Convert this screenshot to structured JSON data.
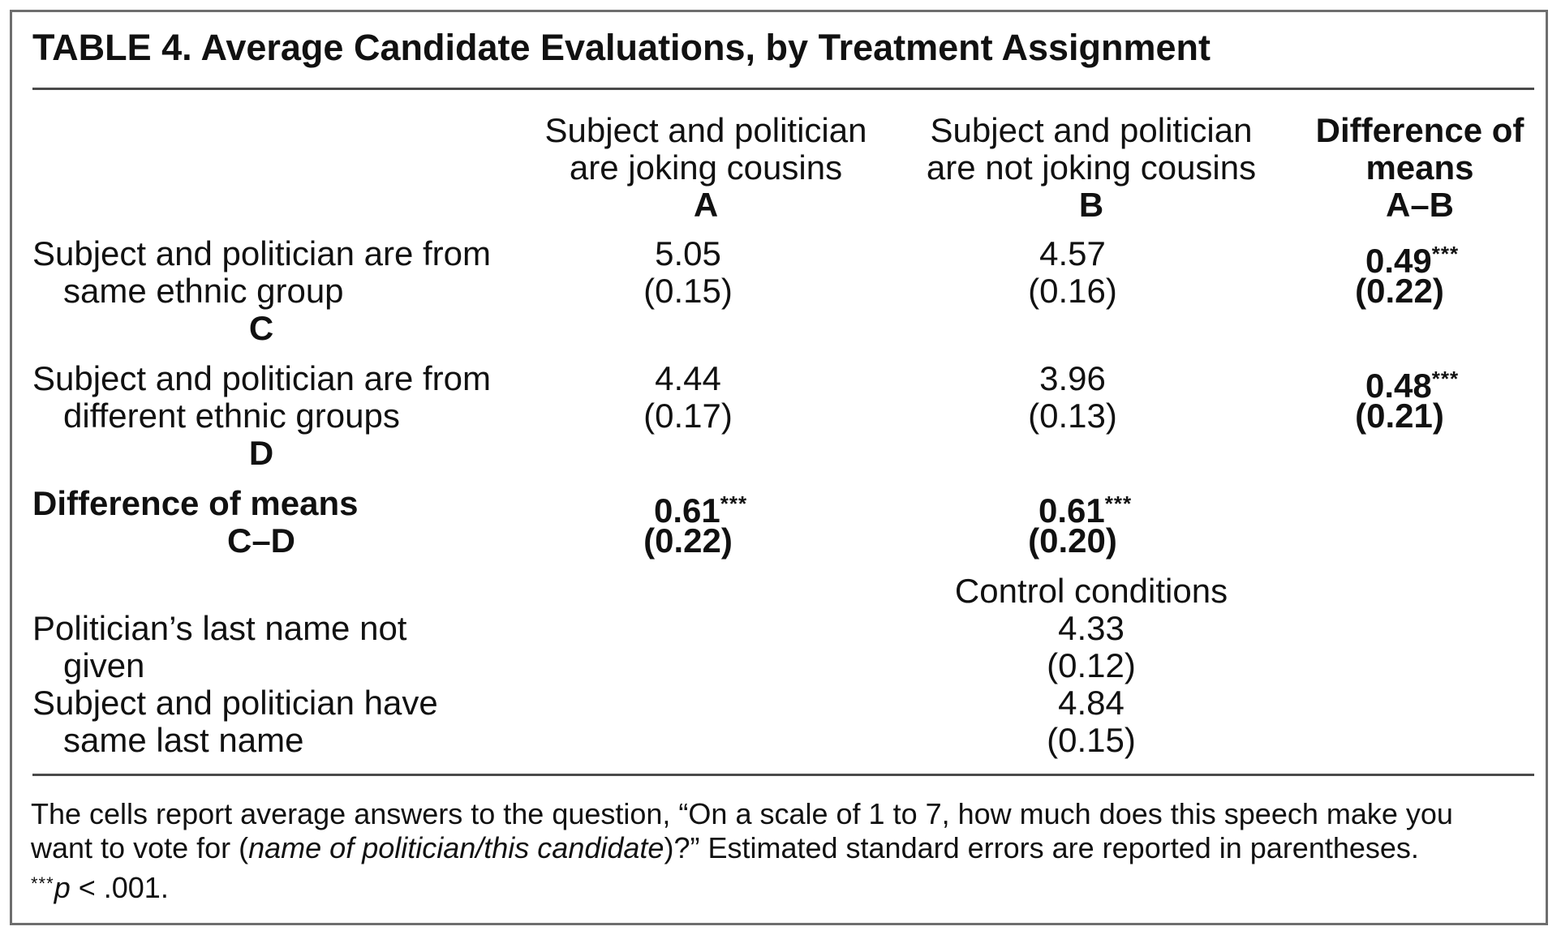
{
  "table": {
    "title": "TABLE 4.   Average Candidate Evaluations, by Treatment Assignment",
    "columns": [
      {
        "line1": "Subject and politician",
        "line2": "are joking cousins",
        "letter": "A"
      },
      {
        "line1": "Subject and politician",
        "line2": "are not joking cousins",
        "letter": "B"
      },
      {
        "line1": "Difference of",
        "line2": "means",
        "letter": "A–B"
      }
    ],
    "rows": [
      {
        "label_line1": "Subject and politician are from",
        "label_line2": "same ethnic group",
        "letter": "C",
        "a_mean": "5.05",
        "a_se": "(0.15)",
        "b_mean": "4.57",
        "b_se": "(0.16)",
        "diff_mean": "0.49",
        "diff_stars": "***",
        "diff_se": "(0.22)"
      },
      {
        "label_line1": "Subject and politician are from",
        "label_line2": "different ethnic groups",
        "letter": "D",
        "a_mean": "4.44",
        "a_se": "(0.17)",
        "b_mean": "3.96",
        "b_se": "(0.13)",
        "diff_mean": "0.48",
        "diff_stars": "***",
        "diff_se": "(0.21)"
      }
    ],
    "diff_row": {
      "label_line1": "Difference of means",
      "label_line2": "C–D",
      "a_mean": "0.61",
      "a_stars": "***",
      "a_se": "(0.22)",
      "b_mean": "0.61",
      "b_stars": "***",
      "b_se": "(0.20)"
    },
    "control": {
      "heading": "Control conditions",
      "rows": [
        {
          "label_line1": "Politician’s last name not",
          "label_line2": "given",
          "mean": "4.33",
          "se": "(0.12)"
        },
        {
          "label_line1": "Subject and politician have",
          "label_line2": "same last name",
          "mean": "4.84",
          "se": "(0.15)"
        }
      ]
    },
    "note": {
      "line1": "The cells report average answers to the question, “On a scale of 1 to 7, how much does this speech make you",
      "line2_pre": "want to vote for (",
      "line2_italic": "name of politician/this candidate",
      "line2_post": ")?” Estimated standard errors are reported in parentheses.",
      "line3_stars": "***",
      "line3_p": "p",
      "line3_rest": " < .001."
    }
  }
}
